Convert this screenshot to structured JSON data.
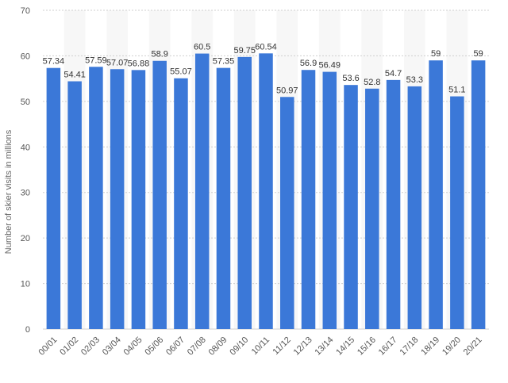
{
  "chart_data": {
    "type": "bar",
    "ylabel": "Number of skier visits in millions",
    "xlabel": "",
    "title": "",
    "ylim": [
      0,
      70
    ],
    "yticks": [
      0,
      10,
      20,
      30,
      40,
      50,
      60,
      70
    ],
    "grid": true,
    "bar_color": "#3b78d8",
    "categories": [
      "00/01",
      "01/02",
      "02/03",
      "03/04",
      "04/05",
      "05/06",
      "06/07",
      "07/08",
      "08/09",
      "09/10",
      "10/11",
      "11/12",
      "12/13",
      "13/14",
      "14/15",
      "15/16",
      "16/17",
      "17/18",
      "18/19",
      "19/20",
      "20/21"
    ],
    "values": [
      57.34,
      54.41,
      57.59,
      57.07,
      56.88,
      58.9,
      55.07,
      60.5,
      57.35,
      59.75,
      60.54,
      50.97,
      56.9,
      56.49,
      53.6,
      52.8,
      54.7,
      53.3,
      59,
      51.1,
      59
    ],
    "data_labels": [
      "57.34",
      "54.41",
      "57.59",
      "57.07",
      "56.88",
      "58.9",
      "55.07",
      "60.5",
      "57.35",
      "59.75",
      "60.54",
      "50.97",
      "56.9",
      "56.49",
      "53.6",
      "52.8",
      "54.7",
      "53.3",
      "59",
      "51.1",
      "59"
    ]
  }
}
